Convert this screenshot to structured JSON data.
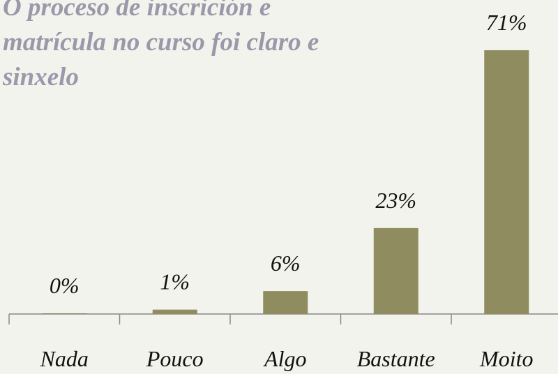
{
  "chart_data": {
    "type": "bar",
    "title": "O proceso de inscrición e matrícula no curso foi claro e sinxelo",
    "categories": [
      "Nada",
      "Pouco",
      "Algo",
      "Bastante",
      "Moito"
    ],
    "values": [
      0,
      1,
      6,
      23,
      71
    ],
    "value_labels": [
      "0%",
      "1%",
      "6%",
      "23%",
      "71%"
    ],
    "color": "#8f8c5f"
  }
}
